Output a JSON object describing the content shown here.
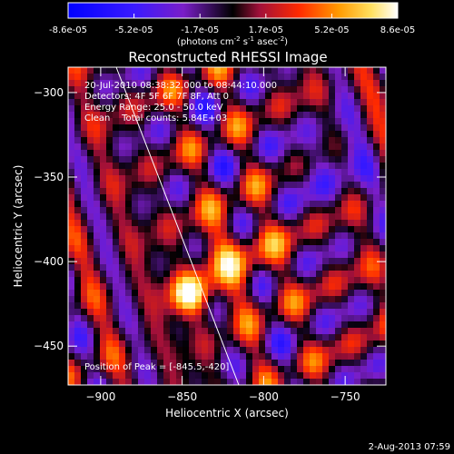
{
  "colorbar": {
    "ticks": [
      "-8.6e-05",
      "-5.2e-05",
      "-1.7e-05",
      "1.7e-05",
      "5.2e-05",
      "8.6e-05"
    ],
    "unit_main": "(photons cm",
    "unit_exp1": "-2",
    "unit_mid": " s",
    "unit_exp2": "-1",
    "unit_tail": " asec",
    "unit_exp3": "-2",
    "unit_close": ")",
    "range": [
      -8.6e-05,
      8.6e-05
    ]
  },
  "chart_data": {
    "type": "heatmap",
    "title": "Reconstructed RHESSI Image",
    "xlabel": "Heliocentric X (arcsec)",
    "ylabel": "Heliocentric Y (arcsec)",
    "xlim": [
      -920,
      -725
    ],
    "ylim": [
      -473,
      -285
    ],
    "x_ticks": [
      -900,
      -850,
      -800,
      -750
    ],
    "x_tick_labels": [
      "−900",
      "−850",
      "−800",
      "−750"
    ],
    "y_ticks": [
      -300,
      -350,
      -400,
      -450
    ],
    "y_tick_labels": [
      "−300",
      "−350",
      "−400",
      "−450"
    ],
    "colormap": "rhessi (blue-purple-red-orange-yellow-white)",
    "limb_curve": "white line",
    "annotations": [
      "20-Jul-2010 08:38:32.000 to 08:44:10.000",
      "Detectors: 4F 5F 6F 7F 8F, Att 0",
      "Energy Range: 25.0 - 50.0 keV",
      "Clean    Total counts: 5.84E+03",
      "Position of Peak = [-845.5,-420]"
    ],
    "peak": {
      "x": -845.5,
      "y": -420
    }
  },
  "footer": {
    "timestamp": "2-Aug-2013 07:59"
  }
}
